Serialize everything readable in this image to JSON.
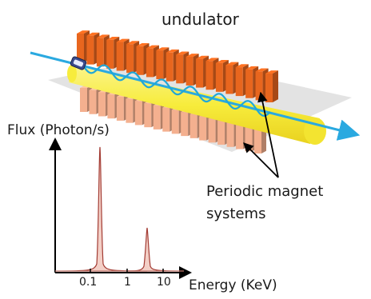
{
  "labels": {
    "title": "undulator",
    "flux": "Flux (Photon/s)",
    "periodic_line1": "Periodic magnet",
    "periodic_line2": "systems",
    "energy": "Energy (KeV)"
  },
  "ticks": [
    "0.1",
    "1",
    "10"
  ],
  "colors": {
    "upper_magnets": "#e8661e",
    "lower_magnets": "#f4b08f",
    "beam_tube": "#f7ec3c",
    "electron_beam": "#2aa9e0",
    "wiggle": "#1fa7d8",
    "peak_fill": "#f3cfc6",
    "peak_stroke": "#a33c34",
    "axis": "#000000"
  },
  "icons": {
    "electron_source": "electron-gun-icon"
  }
}
